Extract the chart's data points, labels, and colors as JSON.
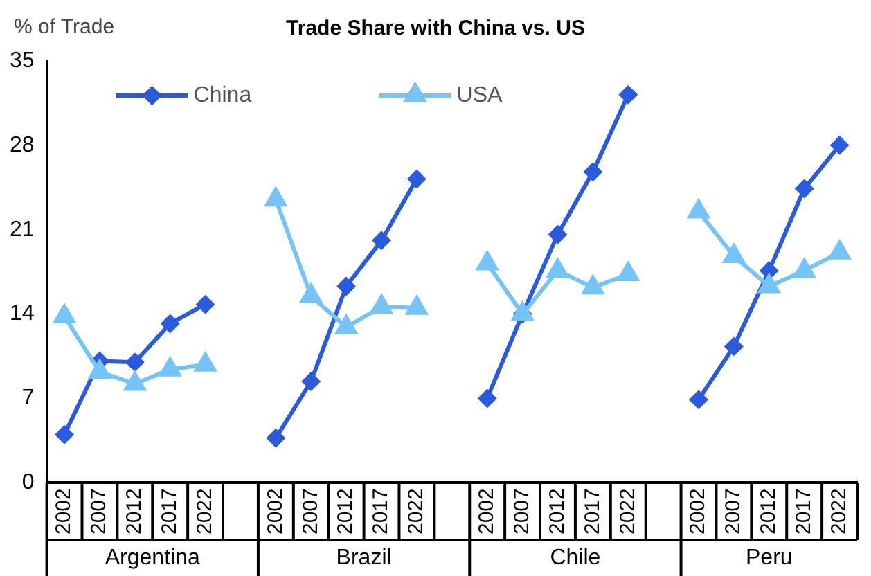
{
  "chart_data": {
    "type": "line",
    "title": "Trade Share with China vs. US",
    "ylabel": "% of Trade",
    "categories": [
      "2002",
      "2007",
      "2012",
      "2017",
      "2022",
      null,
      "2002",
      "2007",
      "2012",
      "2017",
      "2022",
      null,
      "2002",
      "2007",
      "2012",
      "2017",
      "2022",
      null,
      "2002",
      "2007",
      "2012",
      "2017",
      "2022"
    ],
    "annotations": [
      "Argentina",
      "Brazil",
      "Chile",
      "Peru"
    ],
    "series": [
      {
        "name": "China",
        "color": "#2a5bdc",
        "marker": "diamond",
        "values": [
          4.0,
          10.1,
          10.0,
          13.2,
          14.8,
          null,
          3.7,
          8.4,
          16.3,
          20.1,
          25.2,
          null,
          7.0,
          14.0,
          20.6,
          25.8,
          32.2,
          null,
          6.9,
          11.3,
          17.6,
          24.4,
          28.0
        ]
      },
      {
        "name": "USA",
        "color": "#74c4f7",
        "marker": "triangle",
        "values": [
          13.8,
          9.2,
          8.2,
          9.4,
          9.8,
          null,
          23.5,
          15.5,
          12.9,
          14.6,
          14.5,
          null,
          18.2,
          14.0,
          17.6,
          16.2,
          17.3,
          null,
          22.5,
          18.8,
          16.3,
          17.6,
          19.1
        ]
      }
    ],
    "ylim": [
      0,
      35
    ],
    "yticks": [
      0,
      7,
      14,
      21,
      28,
      35
    ],
    "grid": false,
    "legend": "top left",
    "line_style": "solid"
  }
}
